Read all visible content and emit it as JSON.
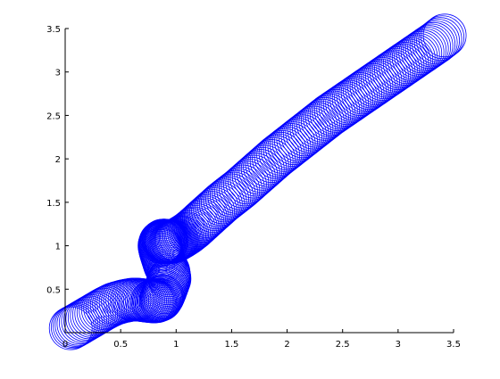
{
  "chart_data": {
    "type": "scatter",
    "marker": "circle",
    "xlim": [
      0,
      3.5
    ],
    "ylim": [
      0,
      3.5
    ],
    "x_ticks": [
      "0",
      "0.5",
      "1",
      "1.5",
      "2",
      "2.5",
      "3",
      "3.5"
    ],
    "y_ticks": [
      "0.5",
      "1",
      "1.5",
      "2",
      "2.5",
      "3",
      "3.5"
    ],
    "x_tick_values": [
      0,
      0.5,
      1,
      1.5,
      2,
      2.5,
      3,
      3.5
    ],
    "y_tick_values": [
      0.5,
      1,
      1.5,
      2,
      2.5,
      3,
      3.5
    ],
    "grid": false,
    "series": [
      {
        "color": "#0000ff",
        "x": [
          0.05,
          0.12,
          0.2,
          0.28,
          0.36,
          0.44,
          0.52,
          0.6,
          0.66,
          0.72,
          0.78,
          0.82,
          0.86,
          0.88,
          0.9,
          0.92,
          0.94,
          0.93,
          0.9,
          0.88,
          0.86,
          0.85,
          0.86,
          0.88,
          0.9,
          0.92,
          0.95,
          0.98,
          1.01,
          1.05,
          1.1,
          1.16,
          1.22,
          1.28,
          1.35,
          1.42,
          1.5,
          1.58,
          1.66,
          1.74,
          1.82,
          1.9,
          1.98,
          2.06,
          2.14,
          2.22,
          2.3,
          2.38,
          2.46,
          2.54,
          2.62,
          2.7,
          2.78,
          2.86,
          2.94,
          3.02,
          3.1,
          3.18,
          3.26,
          3.34,
          3.42
        ],
        "y": [
          0.05,
          0.1,
          0.16,
          0.22,
          0.28,
          0.33,
          0.36,
          0.38,
          0.38,
          0.37,
          0.36,
          0.36,
          0.38,
          0.42,
          0.48,
          0.55,
          0.62,
          0.7,
          0.78,
          0.86,
          0.94,
          1.0,
          1.04,
          1.06,
          1.06,
          1.05,
          1.04,
          1.05,
          1.07,
          1.1,
          1.14,
          1.2,
          1.27,
          1.34,
          1.42,
          1.5,
          1.58,
          1.66,
          1.75,
          1.84,
          1.93,
          2.02,
          2.1,
          2.18,
          2.26,
          2.34,
          2.42,
          2.5,
          2.57,
          2.64,
          2.71,
          2.78,
          2.85,
          2.92,
          2.99,
          3.06,
          3.13,
          3.2,
          3.27,
          3.34,
          3.42
        ]
      }
    ]
  }
}
